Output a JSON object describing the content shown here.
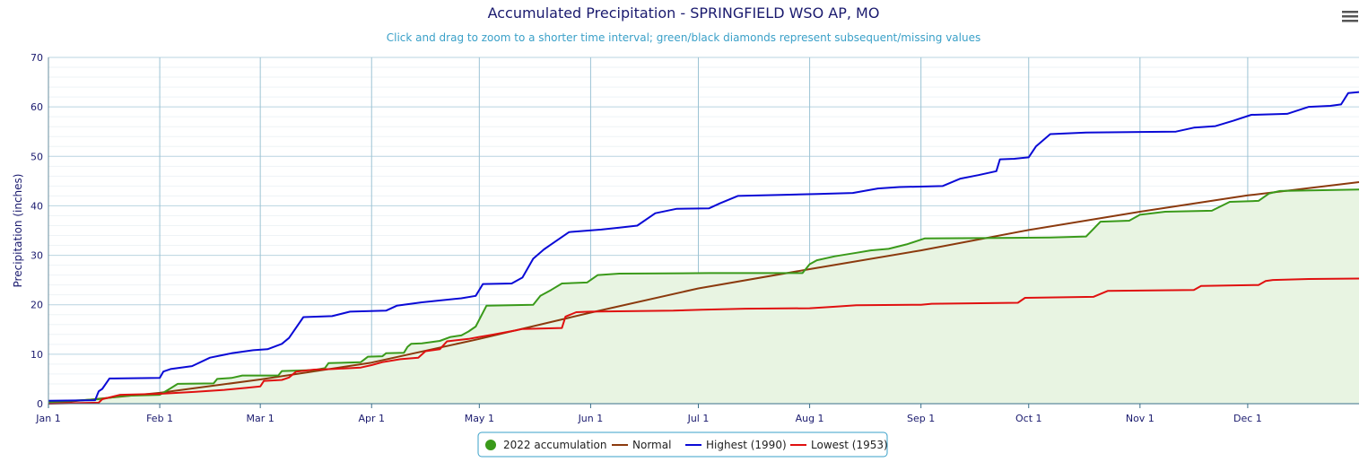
{
  "chart_data": {
    "type": "line",
    "title": "Accumulated Precipitation - SPRINGFIELD WSO AP, MO",
    "subtitle": "Click and drag to zoom to a shorter time interval; green/black diamonds represent subsequent/missing values",
    "xlabel": "",
    "ylabel": "Precipitation (inches)",
    "ylim": [
      0,
      70
    ],
    "yticks": [
      "0",
      "10",
      "20",
      "30",
      "40",
      "50",
      "60",
      "70"
    ],
    "xlim_day_of_year": [
      1,
      366
    ],
    "xticks": [
      {
        "label": "Jan 1",
        "day": 1
      },
      {
        "label": "Feb 1",
        "day": 32
      },
      {
        "label": "Mar 1",
        "day": 60
      },
      {
        "label": "Apr 1",
        "day": 91
      },
      {
        "label": "May 1",
        "day": 121
      },
      {
        "label": "Jun 1",
        "day": 152
      },
      {
        "label": "Jul 1",
        "day": 182
      },
      {
        "label": "Aug 1",
        "day": 213
      },
      {
        "label": "Sep 1",
        "day": 244
      },
      {
        "label": "Oct 1",
        "day": 274
      },
      {
        "label": "Nov 1",
        "day": 305
      },
      {
        "label": "Dec 1",
        "day": 335
      }
    ],
    "grid": true,
    "legend_position": "bottom-center",
    "series": [
      {
        "name": "2022 accumulation",
        "color": "#3a9a1a",
        "fill": "#e8f4e2",
        "points": [
          [
            1,
            0.3
          ],
          [
            15,
            0.9
          ],
          [
            22,
            1.6
          ],
          [
            32,
            1.8
          ],
          [
            35,
            3.1
          ],
          [
            37,
            4.0
          ],
          [
            47,
            4.1
          ],
          [
            48,
            5.0
          ],
          [
            52,
            5.2
          ],
          [
            55,
            5.7
          ],
          [
            65,
            5.7
          ],
          [
            66,
            6.6
          ],
          [
            75,
            6.8
          ],
          [
            78,
            7.2
          ],
          [
            79,
            8.2
          ],
          [
            88,
            8.4
          ],
          [
            90,
            9.5
          ],
          [
            94,
            9.6
          ],
          [
            95,
            10.2
          ],
          [
            100,
            10.3
          ],
          [
            101,
            11.5
          ],
          [
            102,
            12.1
          ],
          [
            105,
            12.2
          ],
          [
            110,
            12.7
          ],
          [
            113,
            13.5
          ],
          [
            116,
            13.8
          ],
          [
            118,
            14.6
          ],
          [
            120,
            15.6
          ],
          [
            123,
            19.8
          ],
          [
            136,
            20.0
          ],
          [
            138,
            21.8
          ],
          [
            141,
            23.0
          ],
          [
            144,
            24.3
          ],
          [
            151,
            24.5
          ],
          [
            154,
            26.0
          ],
          [
            160,
            26.3
          ],
          [
            185,
            26.4
          ],
          [
            211,
            26.4
          ],
          [
            213,
            28.2
          ],
          [
            215,
            29.0
          ],
          [
            220,
            29.8
          ],
          [
            226,
            30.5
          ],
          [
            230,
            31.0
          ],
          [
            235,
            31.3
          ],
          [
            240,
            32.2
          ],
          [
            245,
            33.4
          ],
          [
            265,
            33.5
          ],
          [
            280,
            33.6
          ],
          [
            290,
            33.8
          ],
          [
            294,
            36.8
          ],
          [
            302,
            37.0
          ],
          [
            305,
            38.2
          ],
          [
            312,
            38.8
          ],
          [
            325,
            39.0
          ],
          [
            330,
            40.8
          ],
          [
            338,
            41.0
          ],
          [
            341,
            42.5
          ],
          [
            344,
            43.0
          ],
          [
            366,
            43.3
          ]
        ]
      },
      {
        "name": "Normal",
        "color": "#8b3a0e",
        "points": [
          [
            1,
            0.0
          ],
          [
            32,
            2.2
          ],
          [
            60,
            4.9
          ],
          [
            91,
            8.3
          ],
          [
            121,
            13.1
          ],
          [
            152,
            18.4
          ],
          [
            182,
            23.3
          ],
          [
            213,
            27.2
          ],
          [
            244,
            31.0
          ],
          [
            274,
            35.1
          ],
          [
            305,
            38.8
          ],
          [
            335,
            42.1
          ],
          [
            366,
            44.8
          ]
        ]
      },
      {
        "name": "Highest (1990)",
        "color": "#0a0ad6",
        "points": [
          [
            1,
            0.6
          ],
          [
            14,
            0.7
          ],
          [
            15,
            2.5
          ],
          [
            16,
            3.0
          ],
          [
            18,
            5.1
          ],
          [
            32,
            5.2
          ],
          [
            33,
            6.5
          ],
          [
            35,
            7.0
          ],
          [
            41,
            7.6
          ],
          [
            46,
            9.3
          ],
          [
            52,
            10.2
          ],
          [
            58,
            10.8
          ],
          [
            62,
            11.0
          ],
          [
            66,
            12.1
          ],
          [
            68,
            13.3
          ],
          [
            72,
            17.5
          ],
          [
            80,
            17.7
          ],
          [
            85,
            18.6
          ],
          [
            95,
            18.8
          ],
          [
            98,
            19.8
          ],
          [
            105,
            20.5
          ],
          [
            116,
            21.3
          ],
          [
            120,
            21.8
          ],
          [
            122,
            24.2
          ],
          [
            130,
            24.3
          ],
          [
            133,
            25.5
          ],
          [
            136,
            29.3
          ],
          [
            139,
            31.2
          ],
          [
            141,
            32.2
          ],
          [
            146,
            34.7
          ],
          [
            155,
            35.2
          ],
          [
            160,
            35.6
          ],
          [
            165,
            36.0
          ],
          [
            170,
            38.5
          ],
          [
            176,
            39.4
          ],
          [
            185,
            39.5
          ],
          [
            188,
            40.5
          ],
          [
            193,
            42.0
          ],
          [
            205,
            42.2
          ],
          [
            215,
            42.4
          ],
          [
            225,
            42.6
          ],
          [
            232,
            43.5
          ],
          [
            238,
            43.8
          ],
          [
            250,
            44.0
          ],
          [
            255,
            45.5
          ],
          [
            260,
            46.2
          ],
          [
            265,
            47.0
          ],
          [
            266,
            49.4
          ],
          [
            270,
            49.5
          ],
          [
            274,
            49.8
          ],
          [
            276,
            52.0
          ],
          [
            280,
            54.5
          ],
          [
            290,
            54.8
          ],
          [
            315,
            55.0
          ],
          [
            320,
            55.8
          ],
          [
            326,
            56.1
          ],
          [
            331,
            57.2
          ],
          [
            336,
            58.4
          ],
          [
            346,
            58.6
          ],
          [
            352,
            60.0
          ],
          [
            358,
            60.2
          ],
          [
            361,
            60.5
          ],
          [
            363,
            62.8
          ],
          [
            366,
            63.0
          ]
        ]
      },
      {
        "name": "Lowest (1953)",
        "color": "#e01010",
        "points": [
          [
            1,
            0.0
          ],
          [
            15,
            0.2
          ],
          [
            16,
            0.9
          ],
          [
            21,
            1.8
          ],
          [
            32,
            2.0
          ],
          [
            42,
            2.4
          ],
          [
            50,
            2.8
          ],
          [
            56,
            3.2
          ],
          [
            60,
            3.5
          ],
          [
            61,
            4.6
          ],
          [
            66,
            4.8
          ],
          [
            68,
            5.3
          ],
          [
            70,
            6.5
          ],
          [
            75,
            6.9
          ],
          [
            80,
            7.0
          ],
          [
            88,
            7.3
          ],
          [
            91,
            7.8
          ],
          [
            94,
            8.4
          ],
          [
            99,
            9.0
          ],
          [
            104,
            9.3
          ],
          [
            106,
            10.6
          ],
          [
            110,
            11.0
          ],
          [
            112,
            12.6
          ],
          [
            118,
            13.1
          ],
          [
            121,
            13.5
          ],
          [
            125,
            14.0
          ],
          [
            131,
            14.8
          ],
          [
            133,
            15.1
          ],
          [
            144,
            15.3
          ],
          [
            145,
            17.6
          ],
          [
            148,
            18.5
          ],
          [
            152,
            18.6
          ],
          [
            175,
            18.8
          ],
          [
            183,
            19.0
          ],
          [
            195,
            19.2
          ],
          [
            213,
            19.3
          ],
          [
            220,
            19.6
          ],
          [
            226,
            19.9
          ],
          [
            244,
            20.0
          ],
          [
            247,
            20.2
          ],
          [
            258,
            20.3
          ],
          [
            271,
            20.4
          ],
          [
            273,
            21.4
          ],
          [
            292,
            21.6
          ],
          [
            296,
            22.8
          ],
          [
            320,
            23.0
          ],
          [
            322,
            23.8
          ],
          [
            338,
            24.0
          ],
          [
            340,
            24.8
          ],
          [
            342,
            25.0
          ],
          [
            352,
            25.2
          ],
          [
            366,
            25.3
          ]
        ]
      }
    ]
  }
}
